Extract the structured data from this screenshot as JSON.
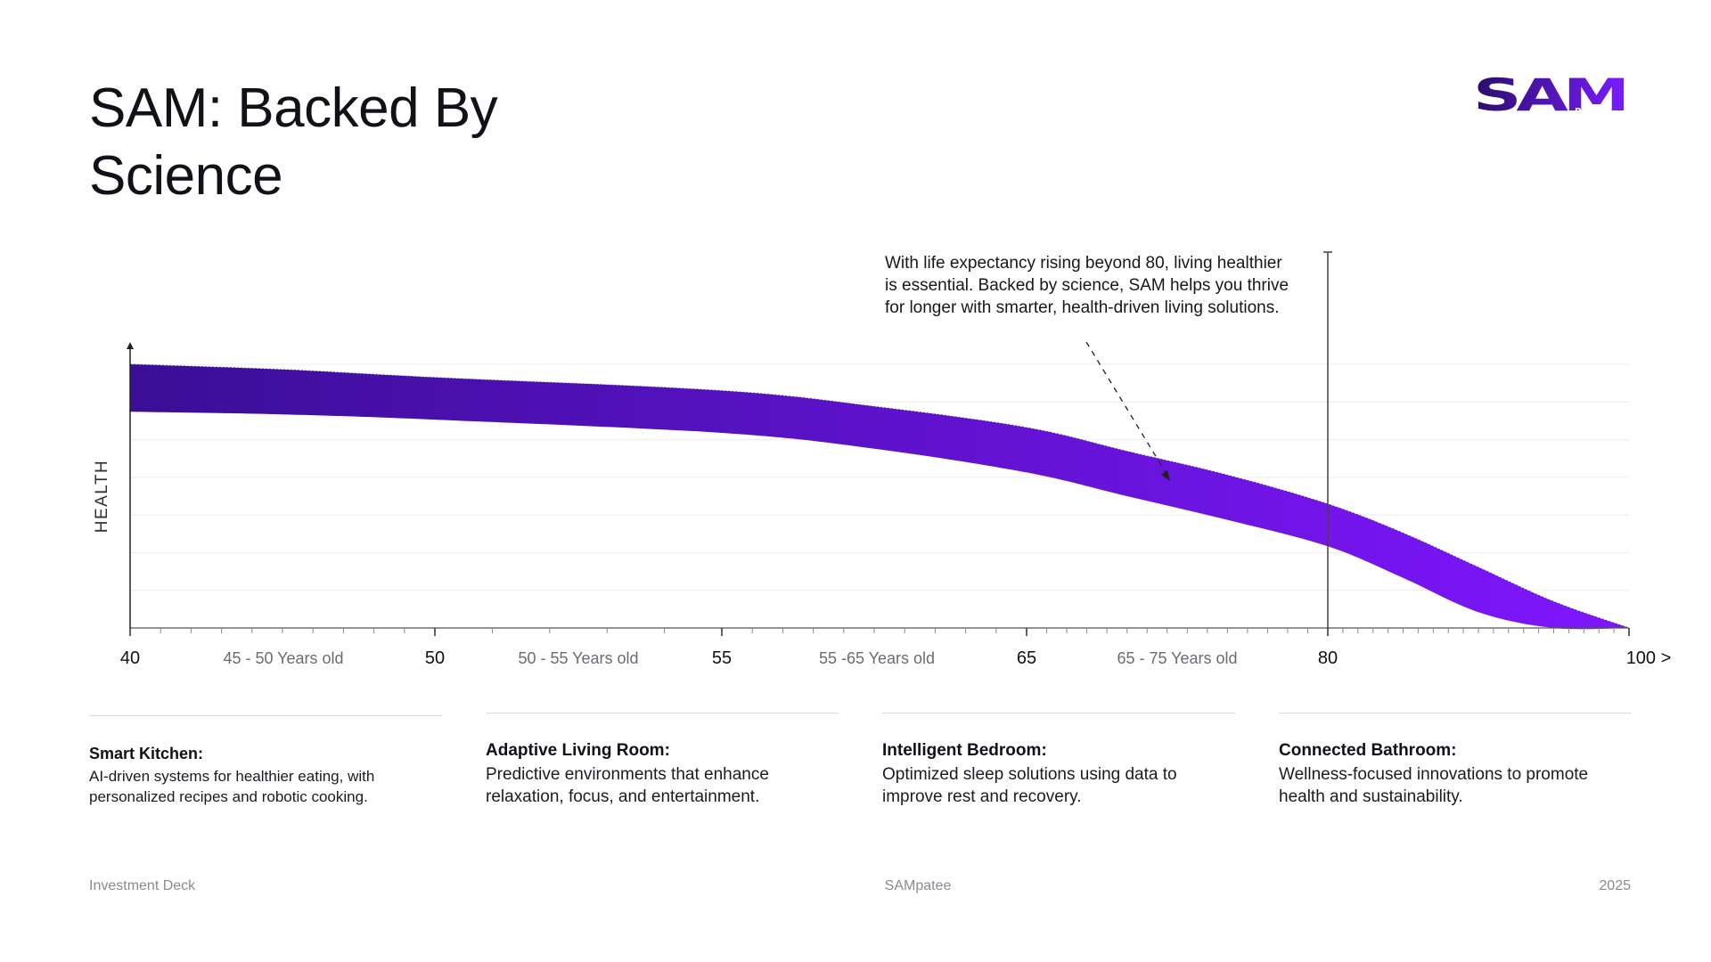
{
  "title": "SAM: Backed By Science",
  "logo": {
    "text": "SAM",
    "subtext": "PATEE",
    "color_start": "#2a0d6b",
    "color_end": "#7a1cff"
  },
  "annotation": "With life expectancy rising beyond 80, living healthier is essential. Backed by science, SAM helps you thrive for longer with smarter, health-driven living solutions.",
  "chart_data": {
    "type": "area",
    "ylabel": "HEALTH",
    "x_ticks": [
      "40",
      "50",
      "55",
      "65",
      "80",
      "100 >"
    ],
    "x_tick_positions": [
      40,
      50,
      55,
      65,
      80,
      100
    ],
    "range_labels": [
      "45 - 50 Years old",
      "50 - 55 Years old",
      "55 -65 Years old",
      "65 - 75 Years old"
    ],
    "range_label_centers": [
      45,
      52.5,
      60,
      70
    ],
    "xlim": [
      40,
      100
    ],
    "ylim": [
      0,
      100
    ],
    "grid": true,
    "reference_line_x": 80,
    "band": {
      "x": [
        40,
        45,
        50,
        55,
        60,
        65,
        70,
        75,
        80,
        85,
        90,
        95,
        100
      ],
      "upper": [
        100,
        98,
        95,
        90,
        84,
        76,
        67,
        58,
        47,
        36,
        23,
        10,
        0
      ],
      "lower": [
        82,
        81,
        79,
        74,
        68,
        59,
        50,
        41,
        31,
        19,
        6,
        0,
        0
      ]
    },
    "color_start": "#3a0e96",
    "color_end": "#8016ff"
  },
  "cards": [
    {
      "title": "Smart Kitchen:",
      "desc": "AI-driven systems for healthier eating, with personalized recipes and robotic cooking."
    },
    {
      "title": "Adaptive Living Room:",
      "desc": "Predictive environments that enhance relaxation, focus, and entertainment."
    },
    {
      "title": "Intelligent Bedroom:",
      "desc": "Optimized sleep solutions using data to improve rest and recovery."
    },
    {
      "title": "Connected Bathroom:",
      "desc": "Wellness-focused innovations to promote health and sustainability."
    }
  ],
  "footer": {
    "left": "Investment Deck",
    "center": "SAMpatee",
    "right": "2025"
  }
}
